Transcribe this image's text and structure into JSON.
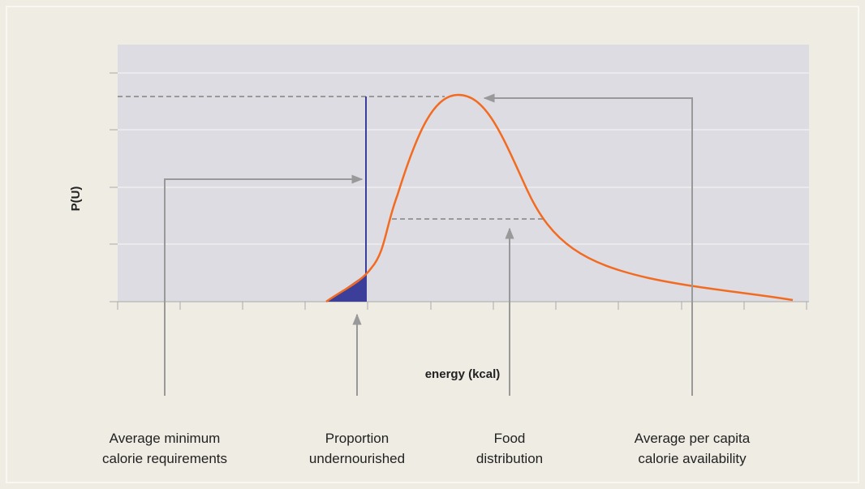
{
  "axes": {
    "y_label": "P(U)",
    "x_label": "energy (kcal)"
  },
  "annotations": [
    {
      "lines": [
        "Average minimum",
        "calorie requirements"
      ]
    },
    {
      "lines": [
        "Proportion",
        "undernourished"
      ]
    },
    {
      "lines": [
        "Food",
        "distribution"
      ]
    },
    {
      "lines": [
        "Average per capita",
        "calorie availability"
      ]
    }
  ]
}
